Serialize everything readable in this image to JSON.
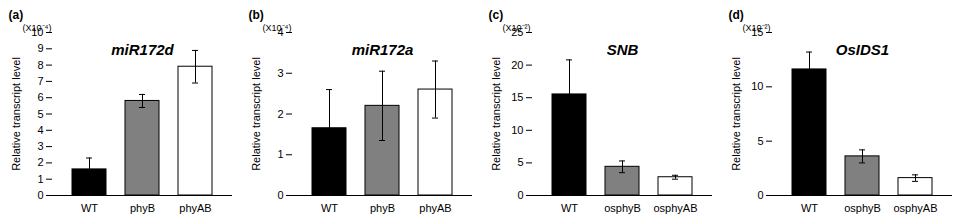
{
  "chart_data": [
    {
      "type": "bar",
      "panel": "(a)",
      "title": "miR172d",
      "y_multiplier": "(X10⁻⁴)",
      "y_label": "Relative transcript level",
      "categories": [
        "WT",
        "phyB",
        "phyAB"
      ],
      "values": [
        1.6,
        5.8,
        7.9
      ],
      "errors": [
        0.7,
        0.4,
        1.0
      ],
      "colors": [
        "#000000",
        "#808080",
        "#ffffff"
      ],
      "ylim": [
        0,
        10
      ],
      "yticks": [
        0,
        1,
        2,
        3,
        4,
        5,
        6,
        7,
        8,
        9,
        10
      ],
      "grid": false
    },
    {
      "type": "bar",
      "panel": "(b)",
      "title": "miR172a",
      "y_multiplier": "(X10⁻⁴)",
      "y_label": "Relative transcript level",
      "categories": [
        "WT",
        "phyB",
        "phyAB"
      ],
      "values": [
        1.65,
        2.2,
        2.6
      ],
      "errors": [
        0.95,
        0.85,
        0.7
      ],
      "colors": [
        "#000000",
        "#808080",
        "#ffffff"
      ],
      "ylim": [
        0,
        4
      ],
      "yticks": [
        0,
        1,
        2,
        3,
        4
      ],
      "grid": false
    },
    {
      "type": "bar",
      "panel": "(c)",
      "title": "SNB",
      "y_multiplier": "(X10⁻²)",
      "y_label": "Relative transcript level",
      "categories": [
        "WT",
        "osphyB",
        "osphyAB"
      ],
      "values": [
        15.5,
        4.4,
        2.8
      ],
      "errors": [
        5.3,
        0.9,
        0.3
      ],
      "colors": [
        "#000000",
        "#808080",
        "#ffffff"
      ],
      "ylim": [
        0,
        25
      ],
      "yticks": [
        0,
        5,
        10,
        15,
        20,
        25
      ],
      "grid": false
    },
    {
      "type": "bar",
      "panel": "(d)",
      "title": "OsIDS1",
      "y_multiplier": "(X10⁻²)",
      "y_label": "Relative transcript level",
      "categories": [
        "WT",
        "osphyB",
        "osphyAB"
      ],
      "values": [
        11.6,
        3.6,
        1.6
      ],
      "errors": [
        1.6,
        0.6,
        0.3
      ],
      "colors": [
        "#000000",
        "#808080",
        "#ffffff"
      ],
      "ylim": [
        0,
        15
      ],
      "yticks": [
        0,
        5,
        10,
        15
      ],
      "grid": false
    }
  ]
}
